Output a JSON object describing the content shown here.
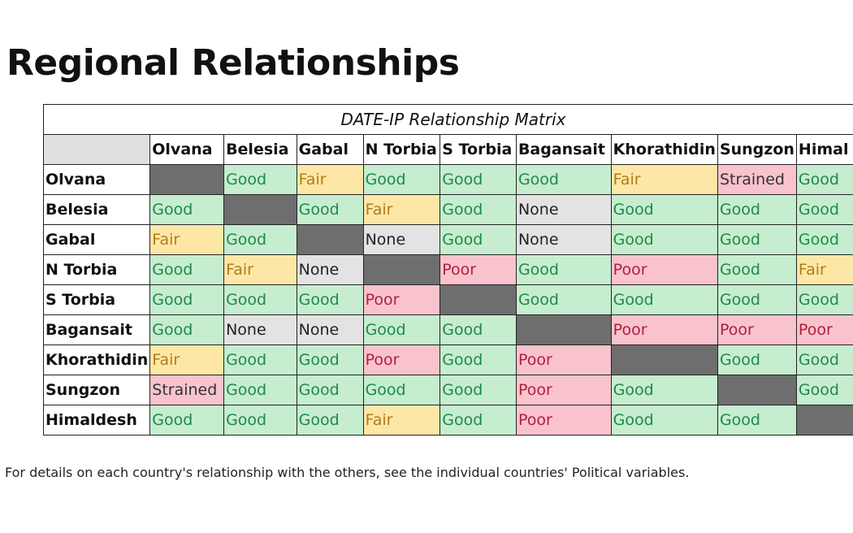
{
  "page_title": "Regional Relationships",
  "matrix": {
    "title": "DATE-IP Relationship Matrix",
    "columns": [
      "Olvana",
      "Belesia",
      "Gabal",
      "N Torbia",
      "S Torbia",
      "Bagansait",
      "Khorathidin",
      "Sungzon",
      "Himal"
    ],
    "rows": [
      {
        "name": "Olvana",
        "cells": [
          "",
          "Good",
          "Fair",
          "Good",
          "Good",
          "Good",
          "Fair",
          "Strained",
          "Good"
        ]
      },
      {
        "name": "Belesia",
        "cells": [
          "Good",
          "",
          "Good",
          "Fair",
          "Good",
          "None",
          "Good",
          "Good",
          "Good"
        ]
      },
      {
        "name": "Gabal",
        "cells": [
          "Fair",
          "Good",
          "",
          "None",
          "Good",
          "None",
          "Good",
          "Good",
          "Good"
        ]
      },
      {
        "name": "N Torbia",
        "cells": [
          "Good",
          "Fair",
          "None",
          "",
          "Poor",
          "Good",
          "Poor",
          "Good",
          "Fair"
        ]
      },
      {
        "name": "S Torbia",
        "cells": [
          "Good",
          "Good",
          "Good",
          "Poor",
          "",
          "Good",
          "Good",
          "Good",
          "Good"
        ]
      },
      {
        "name": "Bagansait",
        "cells": [
          "Good",
          "None",
          "None",
          "Good",
          "Good",
          "",
          "Poor",
          "Poor",
          "Poor"
        ]
      },
      {
        "name": "Khorathidin",
        "cells": [
          "Fair",
          "Good",
          "Good",
          "Poor",
          "Good",
          "Poor",
          "",
          "Good",
          "Good"
        ]
      },
      {
        "name": "Sungzon",
        "cells": [
          "Strained",
          "Good",
          "Good",
          "Good",
          "Good",
          "Poor",
          "Good",
          "",
          "Good"
        ]
      },
      {
        "name": "Himaldesh",
        "cells": [
          "Good",
          "Good",
          "Good",
          "Fair",
          "Good",
          "Poor",
          "Good",
          "Good",
          ""
        ]
      }
    ]
  },
  "footnote": "For details on each country's relationship with the others, see the individual countries' Political variables."
}
